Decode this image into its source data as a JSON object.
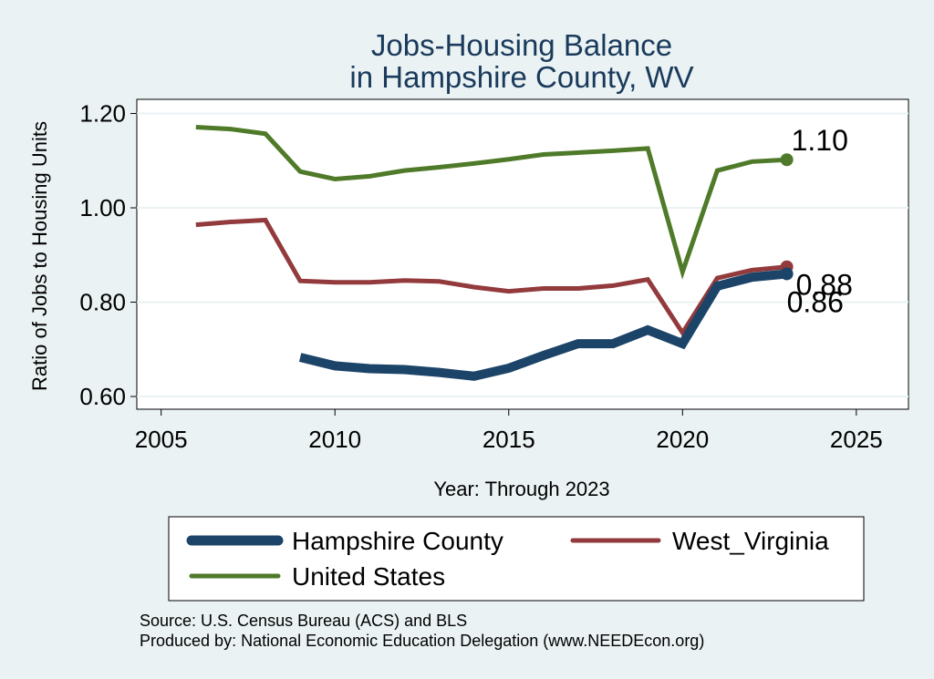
{
  "chart_data": {
    "type": "line",
    "title": [
      "Jobs-Housing Balance",
      "in Hampshire County, WV"
    ],
    "xlabel": "Year: Through 2023",
    "ylabel": "Ratio of Jobs to Housing Units",
    "xlim": [
      2004.3,
      2026.5
    ],
    "ylim": [
      0.573,
      1.23
    ],
    "xticks": [
      2005,
      2010,
      2015,
      2020,
      2025
    ],
    "yticks": [
      0.6,
      0.8,
      1.0,
      1.2
    ],
    "ytick_labels": [
      "0.60",
      "0.80",
      "1.00",
      "1.20"
    ],
    "grid": true,
    "legend_position": "bottom",
    "series": [
      {
        "name": "United States",
        "color": "#4f7a29",
        "x": [
          2006,
          2007,
          2008,
          2009,
          2010,
          2011,
          2012,
          2013,
          2014,
          2015,
          2016,
          2017,
          2018,
          2019,
          2020,
          2021,
          2022,
          2023
        ],
        "y": [
          1.171,
          1.167,
          1.157,
          1.077,
          1.061,
          1.067,
          1.079,
          1.086,
          1.094,
          1.103,
          1.113,
          1.117,
          1.121,
          1.126,
          0.864,
          1.079,
          1.098,
          1.102
        ],
        "end_label": "1.10"
      },
      {
        "name": "West_Virginia",
        "color": "#923a3c",
        "x": [
          2006,
          2007,
          2008,
          2009,
          2010,
          2011,
          2012,
          2013,
          2014,
          2015,
          2016,
          2017,
          2018,
          2019,
          2020,
          2021,
          2022,
          2023
        ],
        "y": [
          0.964,
          0.97,
          0.974,
          0.845,
          0.842,
          0.842,
          0.846,
          0.844,
          0.832,
          0.823,
          0.829,
          0.829,
          0.835,
          0.848,
          0.735,
          0.851,
          0.868,
          0.875
        ],
        "end_label": "0.88"
      },
      {
        "name": "Hampshire County",
        "color": "#1c4469",
        "x": [
          2009,
          2010,
          2011,
          2012,
          2013,
          2014,
          2015,
          2016,
          2017,
          2018,
          2019,
          2020,
          2021,
          2022,
          2023
        ],
        "y": [
          0.683,
          0.665,
          0.659,
          0.657,
          0.651,
          0.643,
          0.66,
          0.687,
          0.712,
          0.712,
          0.741,
          0.712,
          0.834,
          0.853,
          0.86
        ],
        "end_label": "0.86"
      }
    ]
  },
  "legend": {
    "items": [
      "Hampshire County",
      "West_Virginia",
      "United States"
    ]
  },
  "footer": {
    "source": "Source: U.S. Census Bureau (ACS) and BLS",
    "produced": "Produced by: National Economic Education Delegation (www.NEEDEcon.org)"
  }
}
